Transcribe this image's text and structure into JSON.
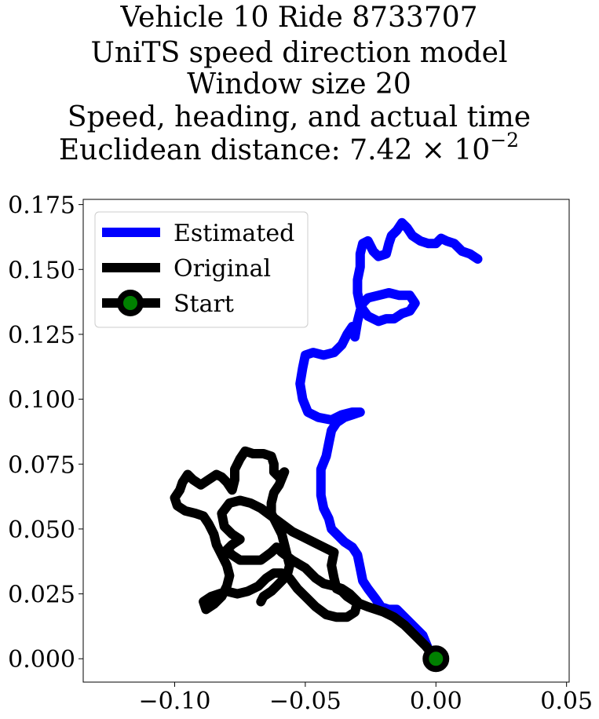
{
  "chart_data": {
    "type": "line",
    "title_lines": [
      "Vehicle 10 Ride 8733707",
      "UniTS speed direction model",
      "Window size 20",
      "Speed, heading, and actual time",
      "Euclidean distance: 7.42 × 10"
    ],
    "title_exponent": "−2",
    "xlim": [
      -0.135,
      0.051
    ],
    "ylim": [
      -0.009,
      0.177
    ],
    "xticks": [
      -0.1,
      -0.05,
      0.0,
      0.05
    ],
    "xtick_labels": [
      "−0.10",
      "−0.05",
      "0.00",
      "0.05"
    ],
    "yticks": [
      0.0,
      0.025,
      0.05,
      0.075,
      0.1,
      0.125,
      0.15,
      0.175
    ],
    "ytick_labels": [
      "0.000",
      "0.025",
      "0.050",
      "0.075",
      "0.100",
      "0.125",
      "0.150",
      "0.175"
    ],
    "grid": false,
    "legend_position": "upper-left",
    "legend": [
      "Estimated",
      "Original",
      "Start"
    ],
    "colors": {
      "estimated": "#0000ff",
      "original": "#000000",
      "start_fill": "#008000",
      "start_edge": "#000000"
    },
    "start": {
      "x": 0.0,
      "y": 0.0
    },
    "series": [
      {
        "name": "Estimated",
        "points": [
          [
            0.0,
            0.0
          ],
          [
            -0.003,
            0.004
          ],
          [
            -0.005,
            0.009
          ],
          [
            -0.008,
            0.012
          ],
          [
            -0.012,
            0.016
          ],
          [
            -0.015,
            0.019
          ],
          [
            -0.018,
            0.019
          ],
          [
            -0.021,
            0.02
          ],
          [
            -0.023,
            0.023
          ],
          [
            -0.026,
            0.027
          ],
          [
            -0.028,
            0.03
          ],
          [
            -0.029,
            0.035
          ],
          [
            -0.03,
            0.04
          ],
          [
            -0.032,
            0.043
          ],
          [
            -0.035,
            0.045
          ],
          [
            -0.037,
            0.047
          ],
          [
            -0.04,
            0.05
          ],
          [
            -0.041,
            0.054
          ],
          [
            -0.043,
            0.058
          ],
          [
            -0.044,
            0.063
          ],
          [
            -0.044,
            0.068
          ],
          [
            -0.044,
            0.073
          ],
          [
            -0.042,
            0.078
          ],
          [
            -0.041,
            0.083
          ],
          [
            -0.04,
            0.088
          ],
          [
            -0.038,
            0.091
          ],
          [
            -0.035,
            0.093
          ],
          [
            -0.032,
            0.094
          ],
          [
            -0.029,
            0.095
          ],
          [
            -0.032,
            0.095
          ],
          [
            -0.036,
            0.094
          ],
          [
            -0.04,
            0.092
          ],
          [
            -0.045,
            0.093
          ],
          [
            -0.049,
            0.095
          ],
          [
            -0.051,
            0.1
          ],
          [
            -0.052,
            0.106
          ],
          [
            -0.051,
            0.112
          ],
          [
            -0.05,
            0.117
          ],
          [
            -0.047,
            0.118
          ],
          [
            -0.043,
            0.117
          ],
          [
            -0.039,
            0.118
          ],
          [
            -0.036,
            0.121
          ],
          [
            -0.034,
            0.125
          ],
          [
            -0.032,
            0.128
          ],
          [
            -0.031,
            0.124
          ],
          [
            -0.03,
            0.13
          ],
          [
            -0.029,
            0.134
          ],
          [
            -0.028,
            0.137
          ],
          [
            -0.026,
            0.139
          ],
          [
            -0.022,
            0.14
          ],
          [
            -0.018,
            0.141
          ],
          [
            -0.014,
            0.14
          ],
          [
            -0.01,
            0.14
          ],
          [
            -0.008,
            0.137
          ],
          [
            -0.01,
            0.134
          ],
          [
            -0.013,
            0.133
          ],
          [
            -0.016,
            0.131
          ],
          [
            -0.019,
            0.131
          ],
          [
            -0.022,
            0.13
          ],
          [
            -0.026,
            0.132
          ],
          [
            -0.029,
            0.136
          ],
          [
            -0.03,
            0.141
          ],
          [
            -0.03,
            0.146
          ],
          [
            -0.029,
            0.151
          ],
          [
            -0.029,
            0.156
          ],
          [
            -0.028,
            0.16
          ],
          [
            -0.026,
            0.161
          ],
          [
            -0.024,
            0.157
          ],
          [
            -0.022,
            0.155
          ],
          [
            -0.019,
            0.156
          ],
          [
            -0.018,
            0.16
          ],
          [
            -0.017,
            0.163
          ],
          [
            -0.015,
            0.165
          ],
          [
            -0.013,
            0.168
          ],
          [
            -0.011,
            0.166
          ],
          [
            -0.009,
            0.163
          ],
          [
            -0.006,
            0.161
          ],
          [
            -0.003,
            0.16
          ],
          [
            0.0,
            0.16
          ],
          [
            0.002,
            0.162
          ],
          [
            0.004,
            0.161
          ],
          [
            0.007,
            0.16
          ],
          [
            0.01,
            0.157
          ],
          [
            0.013,
            0.156
          ],
          [
            0.016,
            0.154
          ]
        ]
      },
      {
        "name": "Original",
        "points": [
          [
            0.0,
            0.0
          ],
          [
            -0.004,
            0.005
          ],
          [
            -0.008,
            0.009
          ],
          [
            -0.012,
            0.013
          ],
          [
            -0.016,
            0.016
          ],
          [
            -0.02,
            0.018
          ],
          [
            -0.026,
            0.02
          ],
          [
            -0.031,
            0.022
          ],
          [
            -0.034,
            0.024
          ],
          [
            -0.036,
            0.026
          ],
          [
            -0.038,
            0.027
          ],
          [
            -0.039,
            0.031
          ],
          [
            -0.04,
            0.036
          ],
          [
            -0.039,
            0.041
          ],
          [
            -0.043,
            0.043
          ],
          [
            -0.047,
            0.045
          ],
          [
            -0.051,
            0.047
          ],
          [
            -0.055,
            0.049
          ],
          [
            -0.059,
            0.052
          ],
          [
            -0.063,
            0.055
          ],
          [
            -0.067,
            0.058
          ],
          [
            -0.071,
            0.06
          ],
          [
            -0.075,
            0.061
          ],
          [
            -0.079,
            0.06
          ],
          [
            -0.082,
            0.056
          ],
          [
            -0.081,
            0.051
          ],
          [
            -0.078,
            0.048
          ],
          [
            -0.075,
            0.046
          ],
          [
            -0.078,
            0.044
          ],
          [
            -0.08,
            0.042
          ],
          [
            -0.078,
            0.04
          ],
          [
            -0.075,
            0.038
          ],
          [
            -0.071,
            0.038
          ],
          [
            -0.067,
            0.038
          ],
          [
            -0.063,
            0.041
          ],
          [
            -0.061,
            0.043
          ],
          [
            -0.059,
            0.041
          ],
          [
            -0.055,
            0.038
          ],
          [
            -0.05,
            0.035
          ],
          [
            -0.046,
            0.031
          ],
          [
            -0.043,
            0.029
          ],
          [
            -0.039,
            0.028
          ],
          [
            -0.036,
            0.027
          ],
          [
            -0.033,
            0.025
          ],
          [
            -0.03,
            0.022
          ],
          [
            -0.031,
            0.018
          ],
          [
            -0.034,
            0.016
          ],
          [
            -0.038,
            0.016
          ],
          [
            -0.042,
            0.017
          ],
          [
            -0.046,
            0.02
          ],
          [
            -0.05,
            0.024
          ],
          [
            -0.053,
            0.027
          ],
          [
            -0.056,
            0.031
          ],
          [
            -0.059,
            0.033
          ],
          [
            -0.062,
            0.033
          ],
          [
            -0.065,
            0.031
          ],
          [
            -0.068,
            0.028
          ],
          [
            -0.072,
            0.026
          ],
          [
            -0.076,
            0.025
          ],
          [
            -0.08,
            0.026
          ],
          [
            -0.083,
            0.025
          ],
          [
            -0.086,
            0.024
          ],
          [
            -0.089,
            0.022
          ],
          [
            -0.088,
            0.019
          ],
          [
            -0.085,
            0.021
          ],
          [
            -0.082,
            0.024
          ],
          [
            -0.08,
            0.028
          ],
          [
            -0.079,
            0.032
          ],
          [
            -0.08,
            0.036
          ],
          [
            -0.082,
            0.04
          ],
          [
            -0.084,
            0.044
          ],
          [
            -0.085,
            0.048
          ],
          [
            -0.087,
            0.052
          ],
          [
            -0.089,
            0.055
          ],
          [
            -0.092,
            0.056
          ],
          [
            -0.096,
            0.057
          ],
          [
            -0.099,
            0.059
          ],
          [
            -0.1,
            0.062
          ],
          [
            -0.098,
            0.065
          ],
          [
            -0.097,
            0.068
          ],
          [
            -0.095,
            0.071
          ],
          [
            -0.093,
            0.069
          ],
          [
            -0.09,
            0.067
          ],
          [
            -0.087,
            0.069
          ],
          [
            -0.084,
            0.071
          ],
          [
            -0.082,
            0.07
          ],
          [
            -0.08,
            0.068
          ],
          [
            -0.078,
            0.065
          ],
          [
            -0.077,
            0.069
          ],
          [
            -0.077,
            0.073
          ],
          [
            -0.075,
            0.077
          ],
          [
            -0.073,
            0.08
          ],
          [
            -0.07,
            0.079
          ],
          [
            -0.066,
            0.079
          ],
          [
            -0.063,
            0.078
          ],
          [
            -0.062,
            0.075
          ],
          [
            -0.062,
            0.072
          ],
          [
            -0.06,
            0.07
          ],
          [
            -0.058,
            0.072
          ],
          [
            -0.06,
            0.067
          ],
          [
            -0.062,
            0.064
          ],
          [
            -0.063,
            0.06
          ],
          [
            -0.063,
            0.056
          ],
          [
            -0.061,
            0.052
          ],
          [
            -0.059,
            0.048
          ],
          [
            -0.058,
            0.044
          ],
          [
            -0.057,
            0.04
          ],
          [
            -0.056,
            0.036
          ],
          [
            -0.057,
            0.032
          ],
          [
            -0.059,
            0.03
          ],
          [
            -0.061,
            0.028
          ],
          [
            -0.063,
            0.026
          ],
          [
            -0.066,
            0.024
          ],
          [
            -0.067,
            0.022
          ]
        ]
      }
    ]
  }
}
